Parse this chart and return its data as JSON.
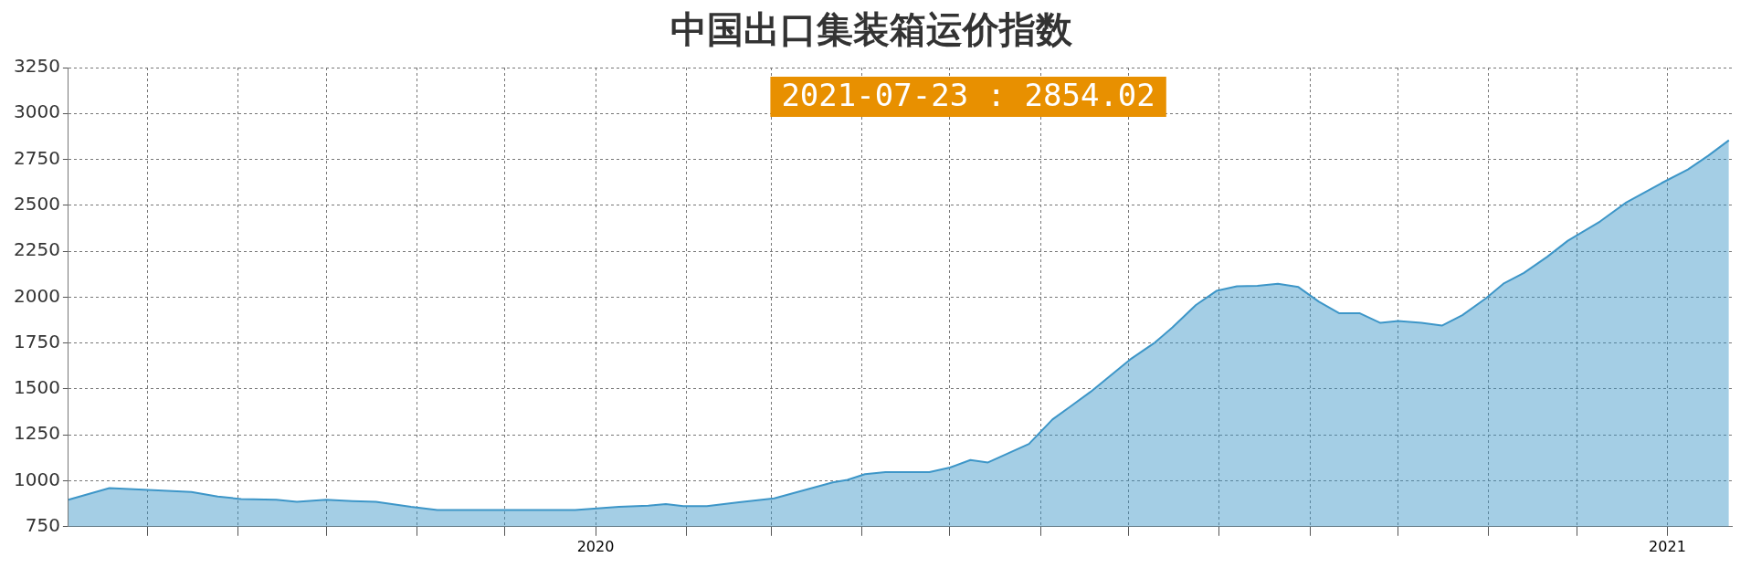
{
  "chart_data": {
    "type": "area",
    "title": "中国出口集装箱运价指数",
    "annotations": [
      "2021-07-23 : 2854.02"
    ],
    "x": [
      "2019-07-05",
      "2019-07-19",
      "2019-08-03",
      "2019-08-16",
      "2019-08-25",
      "2019-09-02",
      "2019-09-14",
      "2019-09-21",
      "2019-10-01",
      "2019-10-10",
      "2019-10-18",
      "2019-10-30",
      "2019-11-08",
      "2019-12-25",
      "2020-01-09",
      "2020-01-19",
      "2020-01-25",
      "2020-01-31",
      "2020-02-08",
      "2020-02-19",
      "2020-03-02",
      "2020-03-14",
      "2020-03-22",
      "2020-03-27",
      "2020-04-02",
      "2020-04-09",
      "2020-04-24",
      "2020-05-01",
      "2020-05-08",
      "2020-05-14",
      "2020-05-28",
      "2020-06-05",
      "2020-06-11",
      "2020-06-18",
      "2020-07-02",
      "2020-07-10",
      "2020-07-16",
      "2020-07-24",
      "2020-07-31",
      "2020-08-07",
      "2020-08-14",
      "2020-08-21",
      "2020-08-28",
      "2020-09-04",
      "2020-09-11",
      "2020-09-18",
      "2020-09-25",
      "2020-10-01",
      "2020-10-09",
      "2020-10-16",
      "2020-10-23",
      "2020-10-31",
      "2020-11-06",
      "2020-11-13",
      "2020-11-21",
      "2020-11-28",
      "2020-12-09",
      "2020-12-18",
      "2020-12-30",
      "2021-01-08",
      "2021-01-15",
      "2021-01-22"
    ],
    "series": [
      {
        "color": "#3d96c8",
        "values": [
          897,
          960,
          949,
          939,
          914,
          901,
          897,
          886,
          897,
          890,
          886,
          858,
          841,
          841,
          858,
          865,
          873,
          862,
          862,
          883,
          904,
          957,
          991,
          1005,
          1036,
          1047,
          1047,
          1072,
          1113,
          1100,
          1201,
          1334,
          1403,
          1484,
          1666,
          1753,
          1835,
          1957,
          2034,
          2059,
          2062,
          2073,
          2055,
          1975,
          1912,
          1912,
          1860,
          1870,
          1860,
          1845,
          1902,
          1993,
          2073,
          2132,
          2220,
          2307,
          2412,
          2516,
          2621,
          2695,
          2771,
          2854
        ]
      }
    ],
    "xlim": [
      "2019-07-05",
      "2021-01-23"
    ],
    "xticks": [
      {
        "value": "2019-08-01",
        "label": null
      },
      {
        "value": "2019-09-01",
        "label": null
      },
      {
        "value": "2019-10-01",
        "label": null
      },
      {
        "value": "2019-11-01",
        "label": null
      },
      {
        "value": "2019-12-01",
        "label": null
      },
      {
        "value": "2020-01-01",
        "label": "2020"
      },
      {
        "value": "2020-02-01",
        "label": null
      },
      {
        "value": "2020-03-01",
        "label": null
      },
      {
        "value": "2020-04-01",
        "label": null
      },
      {
        "value": "2020-05-01",
        "label": null
      },
      {
        "value": "2020-06-01",
        "label": null
      },
      {
        "value": "2020-07-01",
        "label": null
      },
      {
        "value": "2020-08-01",
        "label": null
      },
      {
        "value": "2020-09-01",
        "label": null
      },
      {
        "value": "2020-10-01",
        "label": null
      },
      {
        "value": "2020-11-01",
        "label": null
      },
      {
        "value": "2020-12-01",
        "label": null
      },
      {
        "value": "2021-01-01",
        "label": "2021"
      }
    ],
    "ylim": [
      750,
      3250
    ],
    "yticks": [
      750,
      1000,
      1250,
      1500,
      1750,
      2000,
      2250,
      2500,
      2750,
      3000,
      3250
    ],
    "grid": true,
    "line_style": "solid",
    "marker": "none",
    "legend": false
  }
}
